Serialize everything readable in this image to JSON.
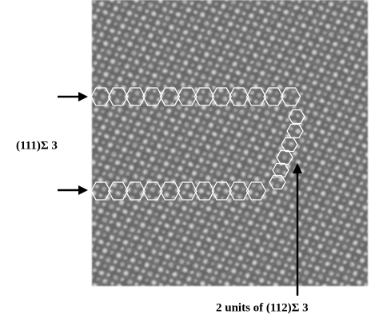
{
  "labels": {
    "boundary": "(111)Σ 3",
    "units": "2 units of (112)Σ 3"
  }
}
